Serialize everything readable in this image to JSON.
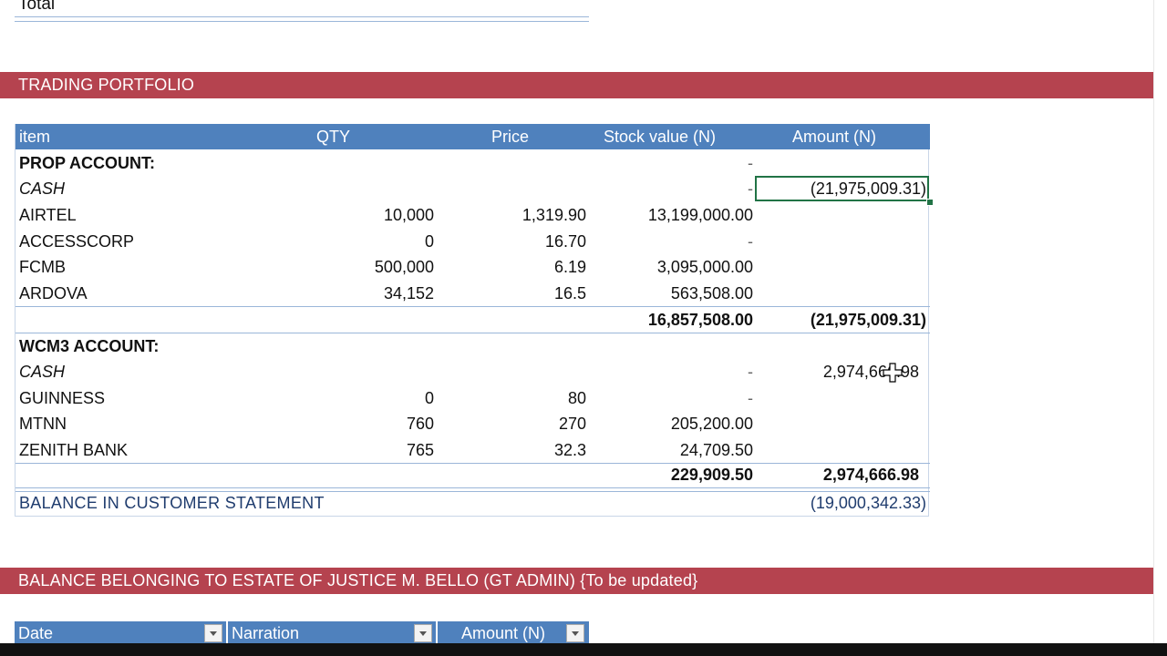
{
  "top": {
    "total_label": "Total"
  },
  "trading": {
    "title": "TRADING PORTFOLIO",
    "columns": {
      "item": "item",
      "qty": "QTY",
      "price": "Price",
      "stock": "Stock value (N)",
      "amount": "Amount (N)"
    },
    "prop": {
      "header": "PROP ACCOUNT:",
      "header_stock": "-",
      "rows": [
        {
          "item": "CASH",
          "qty": "",
          "price": "",
          "stock": "-",
          "amount": "(21,975,009.31)"
        },
        {
          "item": "AIRTEL",
          "qty": "10,000",
          "price": "1,319.90",
          "stock": "13,199,000.00",
          "amount": ""
        },
        {
          "item": "ACCESSCORP",
          "qty": "0",
          "price": "16.70",
          "stock": "-",
          "amount": ""
        },
        {
          "item": "FCMB",
          "qty": "500,000",
          "price": "6.19",
          "stock": "3,095,000.00",
          "amount": ""
        },
        {
          "item": "ARDOVA",
          "qty": "34,152",
          "price": "16.5",
          "stock": "563,508.00",
          "amount": ""
        }
      ],
      "subtotal_stock": "16,857,508.00",
      "subtotal_amount": "(21,975,009.31)"
    },
    "wcm3": {
      "header": "WCM3 ACCOUNT:",
      "rows": [
        {
          "item": "CASH",
          "qty": "",
          "price": "",
          "stock": "-",
          "amount": "2,974,666.98"
        },
        {
          "item": "GUINNESS",
          "qty": "0",
          "price": "80",
          "stock": "-",
          "amount": ""
        },
        {
          "item": "MTNN",
          "qty": "760",
          "price": "270",
          "stock": "205,200.00",
          "amount": ""
        },
        {
          "item": "ZENITH BANK",
          "qty": "765",
          "price": "32.3",
          "stock": "24,709.50",
          "amount": ""
        }
      ],
      "subtotal_stock": "229,909.50",
      "subtotal_amount": "2,974,666.98"
    },
    "balance_label": "BALANCE IN CUSTOMER STATEMENT",
    "balance_value": "(19,000,342.33)"
  },
  "estate": {
    "title": "BALANCE BELONGING TO ESTATE OF JUSTICE M. BELLO (GT ADMIN) {To be updated}",
    "columns": {
      "date": "Date",
      "narration": "Narration",
      "amount": "Amount (N)"
    }
  },
  "colors": {
    "band": "#b5434f",
    "header": "#4f81bd",
    "selection": "#217346"
  }
}
